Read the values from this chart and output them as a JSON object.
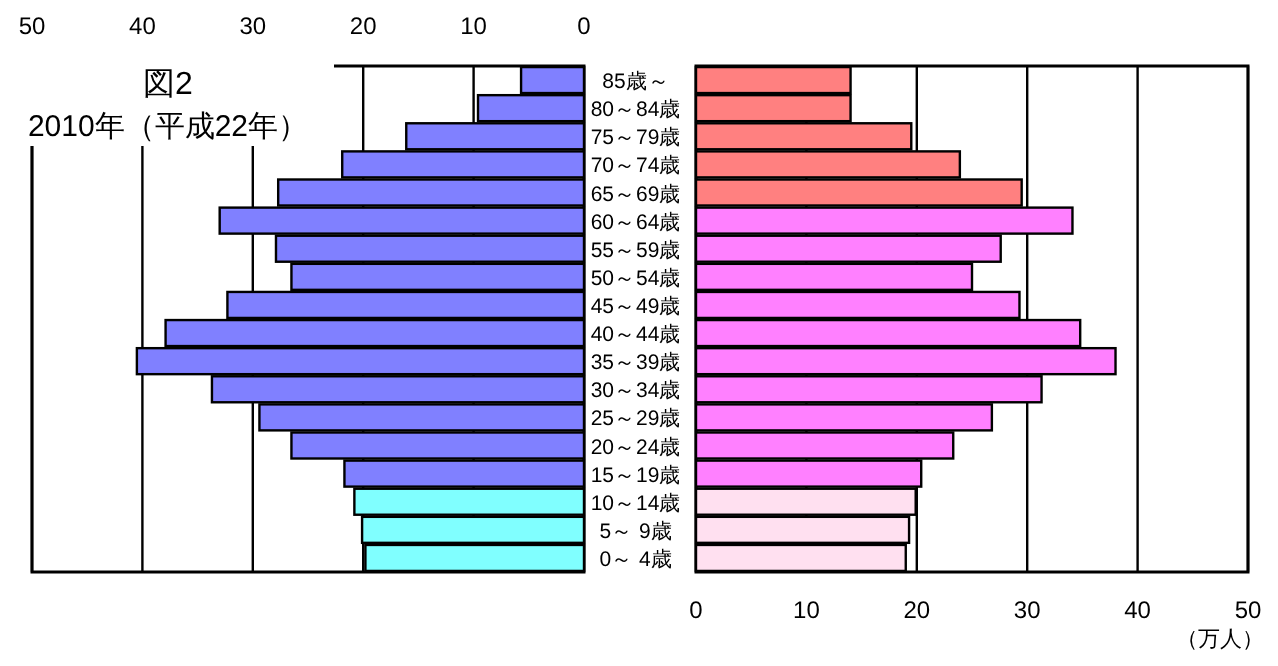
{
  "chart_data": [
    {
      "type": "bar",
      "orientation": "horizontal",
      "title": "図2",
      "subtitle": "2010年（平成22年）",
      "categories": [
        "85歳～",
        "80～84歳",
        "75～79歳",
        "70～74歳",
        "65～69歳",
        "60～64歳",
        "55～59歳",
        "50～54歳",
        "45～49歳",
        "40～44歳",
        "35～39歳",
        "30～34歳",
        "25～29歳",
        "20～24歳",
        "15～19歳",
        "10～14歳",
        "5～ 9歳",
        "0～ 4歳"
      ],
      "series": [
        {
          "values": [
            5.7,
            9.6,
            16.1,
            21.9,
            27.7,
            33.0,
            27.9,
            26.5,
            32.3,
            37.9,
            40.5,
            33.7,
            29.4,
            26.5,
            21.7,
            20.8,
            20.1,
            19.8
          ],
          "colors": [
            "#8080ff",
            "#8080ff",
            "#8080ff",
            "#8080ff",
            "#8080ff",
            "#8080ff",
            "#8080ff",
            "#8080ff",
            "#8080ff",
            "#8080ff",
            "#8080ff",
            "#8080ff",
            "#8080ff",
            "#8080ff",
            "#8080ff",
            "#80ffff",
            "#80ffff",
            "#80ffff"
          ]
        }
      ],
      "xlim": [
        50,
        0
      ],
      "xticks": [
        50,
        40,
        30,
        20,
        10,
        0
      ],
      "grid": "x"
    },
    {
      "type": "bar",
      "orientation": "horizontal",
      "xlabel": "（万人）",
      "series": [
        {
          "values": [
            14.0,
            14.0,
            19.5,
            23.9,
            29.5,
            34.1,
            27.6,
            25.0,
            29.3,
            34.8,
            38.0,
            31.3,
            26.8,
            23.3,
            20.4,
            19.9,
            19.3,
            19.0
          ],
          "colors": [
            "#ff8080",
            "#ff8080",
            "#ff8080",
            "#ff8080",
            "#ff8080",
            "#ff80ff",
            "#ff80ff",
            "#ff80ff",
            "#ff80ff",
            "#ff80ff",
            "#ff80ff",
            "#ff80ff",
            "#ff80ff",
            "#ff80ff",
            "#ff80ff",
            "#ffe0f0",
            "#ffe0f0",
            "#ffe0f0"
          ]
        }
      ],
      "xlim": [
        0,
        50
      ],
      "xticks": [
        0,
        10,
        20,
        30,
        40,
        50
      ],
      "grid": "x"
    }
  ]
}
